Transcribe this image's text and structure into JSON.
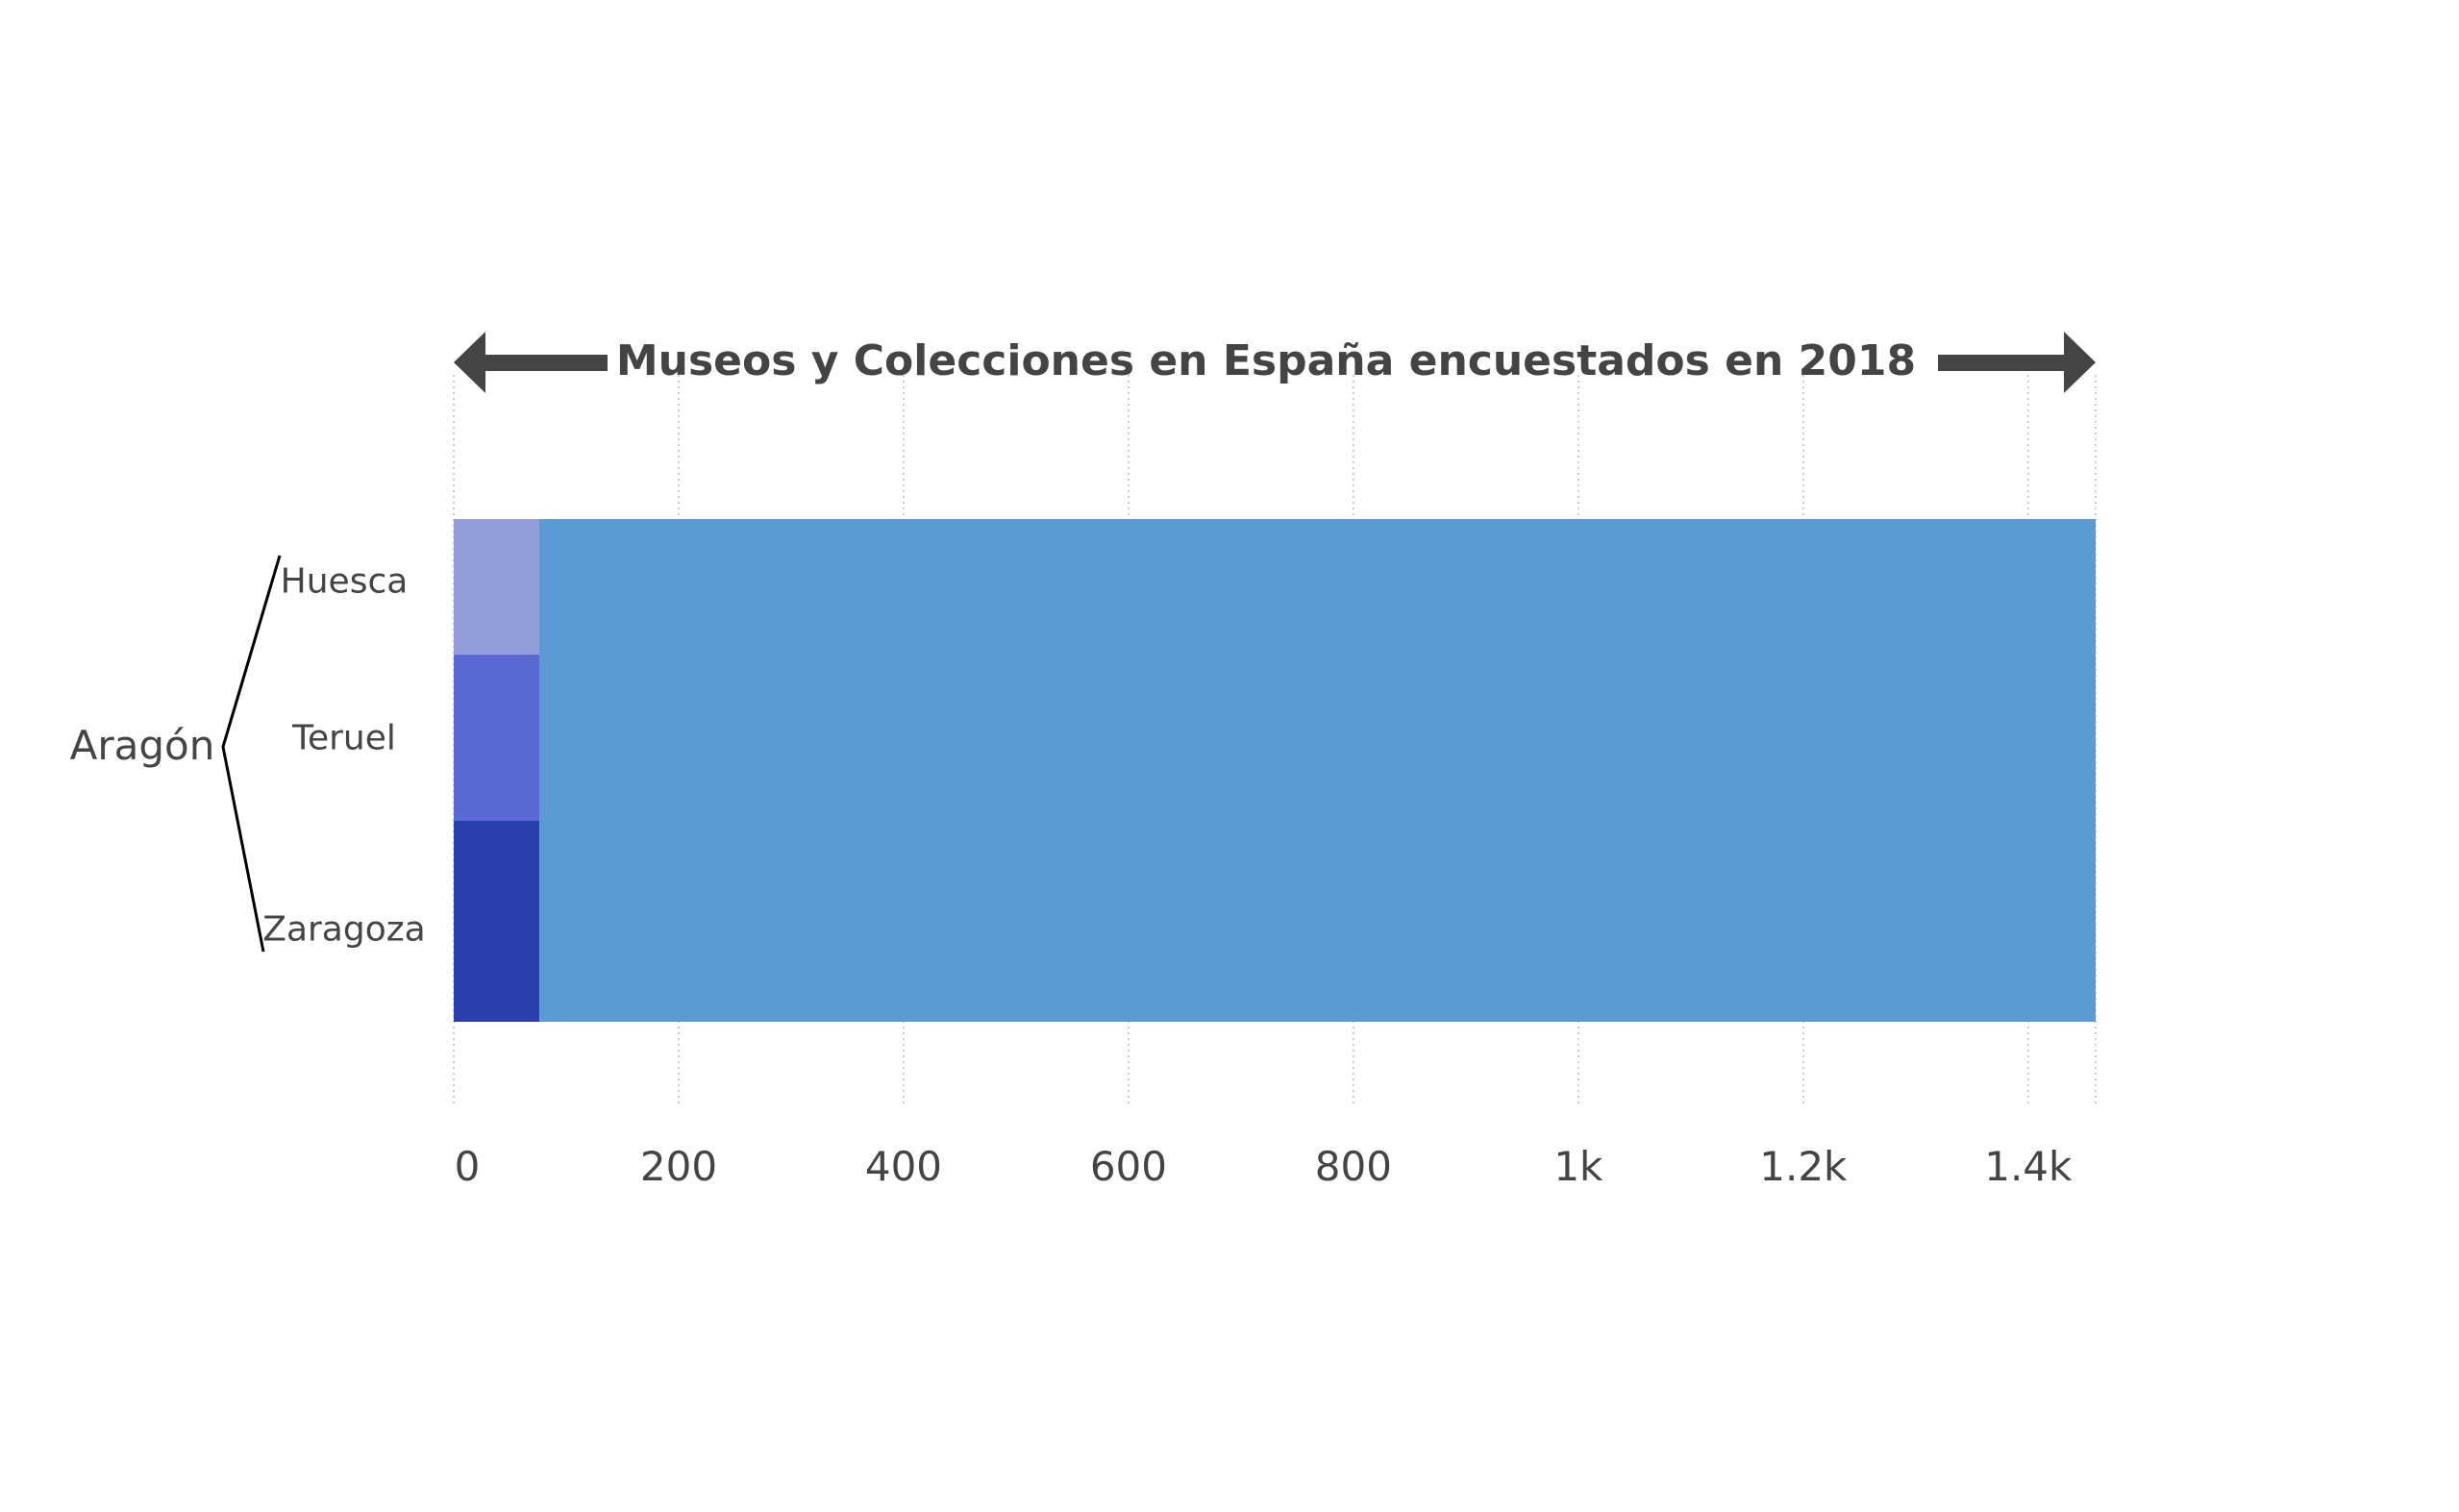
{
  "chart_data": {
    "type": "bar",
    "orientation": "horizontal",
    "title": "Museos y Colecciones en España encuestados en 2018",
    "xlabel": "",
    "ylabel": "",
    "xlim": [
      0,
      1460
    ],
    "x_ticks": [
      {
        "value": 0,
        "label": "0"
      },
      {
        "value": 200,
        "label": "200"
      },
      {
        "value": 400,
        "label": "400"
      },
      {
        "value": 600,
        "label": "600"
      },
      {
        "value": 800,
        "label": "800"
      },
      {
        "value": 1000,
        "label": "1k"
      },
      {
        "value": 1200,
        "label": "1.2k"
      },
      {
        "value": 1400,
        "label": "1.4k"
      }
    ],
    "grid": "vertical-dotted",
    "legend": "none",
    "group": "Aragón",
    "total": {
      "value": 1460,
      "color": "#5b9bd5"
    },
    "subbars": [
      {
        "label": "Huesca",
        "value": 76,
        "share": 0.27,
        "color": "#939fdb"
      },
      {
        "label": "Teruel",
        "value": 76,
        "share": 0.33,
        "color": "#5a69d5"
      },
      {
        "label": "Zaragoza",
        "value": 76,
        "share": 0.4,
        "color": "#2a3ead"
      }
    ]
  }
}
